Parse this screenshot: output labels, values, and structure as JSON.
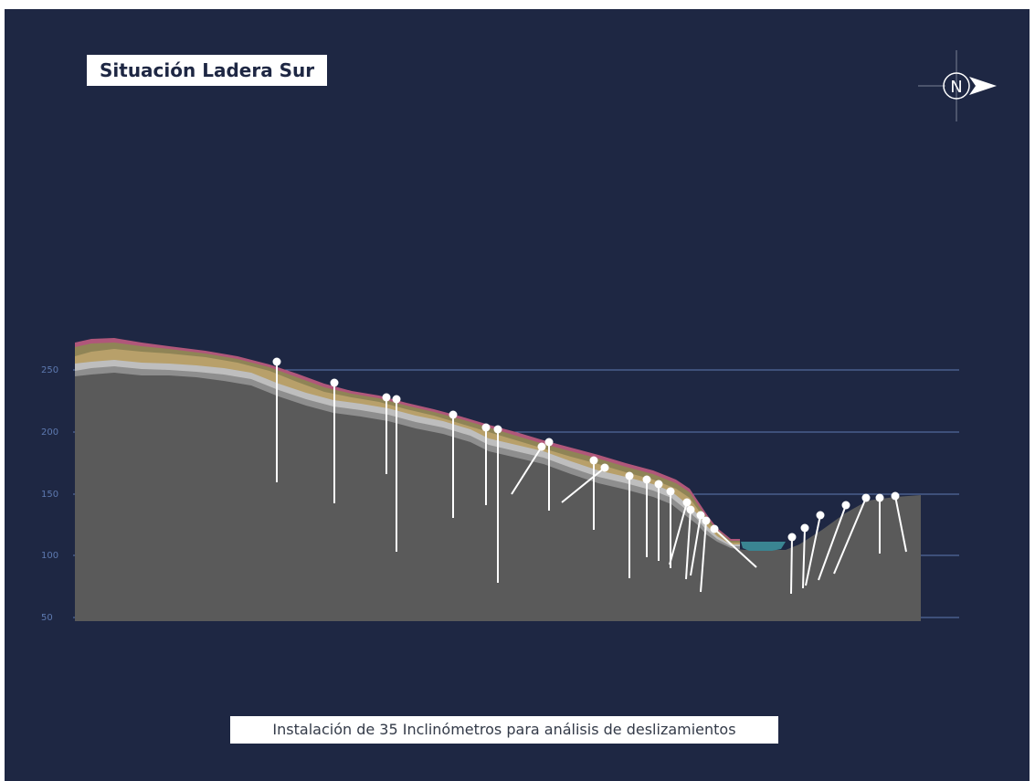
{
  "title": "Situación Ladera Sur",
  "caption": "Instalación de 35 Inclinómetros para análisis de deslizamientos",
  "compass_label": "N",
  "y_axis": {
    "ticks": [
      250,
      200,
      150,
      100,
      50
    ],
    "tick_labels": [
      "250",
      "200",
      "150",
      "100",
      "50"
    ]
  },
  "colors": {
    "background": "#1e2743",
    "gridline": "#5d79b0",
    "bedrock": "#5a5a5a",
    "gray_layer_dark": "#8e8e8e",
    "gray_layer_light": "#bebebe",
    "tan_layer": "#b8a06a",
    "olive_layer": "#8f8456",
    "pink_layer": "#b0577a",
    "water": "#3a8592",
    "inclinometer": "#ffffff",
    "title_box": "#ffffff"
  },
  "icons": [
    "compass-icon",
    "north-arrow-icon"
  ]
}
